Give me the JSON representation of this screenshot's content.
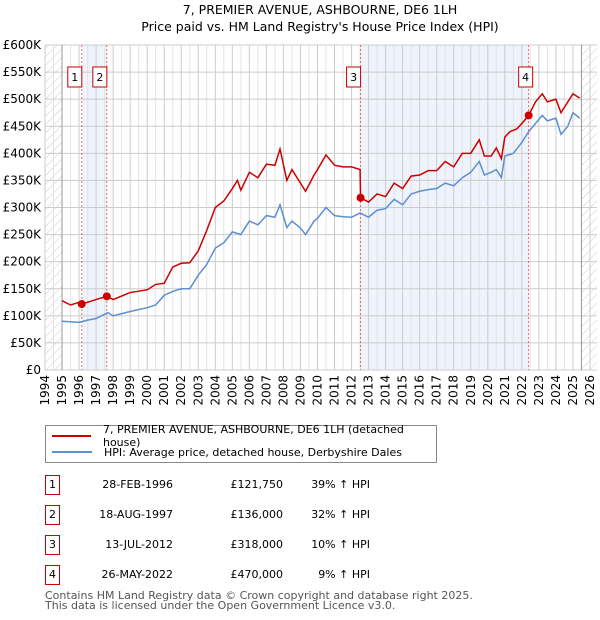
{
  "chart_data": {
    "type": "line",
    "title": "7, PREMIER AVENUE, ASHBOURNE, DE6 1LH",
    "subtitle": "Price paid vs. HM Land Registry's House Price Index (HPI)",
    "xlim": [
      1994,
      2026
    ],
    "ylim": [
      0,
      600000
    ],
    "x_ticks": [
      "1994",
      "1995",
      "1996",
      "1997",
      "1998",
      "1999",
      "2000",
      "2001",
      "2002",
      "2003",
      "2004",
      "2005",
      "2006",
      "2007",
      "2008",
      "2009",
      "2010",
      "2011",
      "2012",
      "2013",
      "2014",
      "2015",
      "2016",
      "2017",
      "2018",
      "2019",
      "2020",
      "2021",
      "2022",
      "2023",
      "2024",
      "2025",
      "2026"
    ],
    "y_ticks": [
      {
        "v": 0,
        "label": "£0"
      },
      {
        "v": 50000,
        "label": "£50K"
      },
      {
        "v": 100000,
        "label": "£100K"
      },
      {
        "v": 150000,
        "label": "£150K"
      },
      {
        "v": 200000,
        "label": "£200K"
      },
      {
        "v": 250000,
        "label": "£250K"
      },
      {
        "v": 300000,
        "label": "£300K"
      },
      {
        "v": 350000,
        "label": "£350K"
      },
      {
        "v": 400000,
        "label": "£400K"
      },
      {
        "v": 450000,
        "label": "£450K"
      },
      {
        "v": 500000,
        "label": "£500K"
      },
      {
        "v": 550000,
        "label": "£550K"
      },
      {
        "v": 600000,
        "label": "£600K"
      }
    ],
    "grid": true,
    "series": [
      {
        "name": "7, PREMIER AVENUE, ASHBOURNE, DE6 1LH (detached house)",
        "color": "#cc0000",
        "points": [
          [
            1995,
            128
          ],
          [
            1995.5,
            120
          ],
          [
            1996,
            125
          ],
          [
            1996.16,
            121.75
          ],
          [
            1997,
            130
          ],
          [
            1997.63,
            136
          ],
          [
            1998,
            130
          ],
          [
            1999,
            143
          ],
          [
            2000,
            148
          ],
          [
            2000.5,
            158
          ],
          [
            2001,
            160
          ],
          [
            2001.5,
            190
          ],
          [
            2002,
            197
          ],
          [
            2002.5,
            198
          ],
          [
            2003,
            220
          ],
          [
            2003.5,
            258
          ],
          [
            2004,
            300
          ],
          [
            2004.5,
            312
          ],
          [
            2005,
            335
          ],
          [
            2005.3,
            350
          ],
          [
            2005.5,
            332
          ],
          [
            2006,
            365
          ],
          [
            2006.5,
            355
          ],
          [
            2007,
            380
          ],
          [
            2007.5,
            378
          ],
          [
            2007.8,
            408
          ],
          [
            2008.2,
            350
          ],
          [
            2008.5,
            370
          ],
          [
            2009,
            345
          ],
          [
            2009.3,
            330
          ],
          [
            2009.8,
            360
          ],
          [
            2010,
            370
          ],
          [
            2010.5,
            397
          ],
          [
            2011,
            378
          ],
          [
            2011.5,
            375
          ],
          [
            2012,
            375
          ],
          [
            2012.5,
            370
          ],
          [
            2012.53,
            318
          ],
          [
            2013,
            310
          ],
          [
            2013.5,
            325
          ],
          [
            2014,
            320
          ],
          [
            2014.5,
            345
          ],
          [
            2015,
            335
          ],
          [
            2015.5,
            358
          ],
          [
            2016,
            360
          ],
          [
            2016.5,
            368
          ],
          [
            2017,
            368
          ],
          [
            2017.5,
            385
          ],
          [
            2018,
            375
          ],
          [
            2018.5,
            400
          ],
          [
            2019,
            400
          ],
          [
            2019.5,
            425
          ],
          [
            2019.8,
            395
          ],
          [
            2020.2,
            395
          ],
          [
            2020.5,
            410
          ],
          [
            2020.8,
            390
          ],
          [
            2021,
            430
          ],
          [
            2021.3,
            440
          ],
          [
            2021.7,
            445
          ],
          [
            2022,
            455
          ],
          [
            2022.4,
            470
          ],
          [
            2022.8,
            495
          ],
          [
            2023.2,
            510
          ],
          [
            2023.5,
            495
          ],
          [
            2024,
            500
          ],
          [
            2024.3,
            475
          ],
          [
            2024.7,
            495
          ],
          [
            2025,
            510
          ],
          [
            2025.4,
            502
          ]
        ]
      },
      {
        "name": "HPI: Average price, detached house, Derbyshire Dales",
        "color": "#5b8fd0",
        "points": [
          [
            1995,
            90
          ],
          [
            1996,
            88
          ],
          [
            1996.5,
            92
          ],
          [
            1997,
            95
          ],
          [
            1997.7,
            106
          ],
          [
            1998,
            100
          ],
          [
            1999,
            108
          ],
          [
            2000,
            115
          ],
          [
            2000.5,
            120
          ],
          [
            2001,
            138
          ],
          [
            2001.5,
            145
          ],
          [
            2002,
            150
          ],
          [
            2002.5,
            150
          ],
          [
            2003,
            175
          ],
          [
            2003.5,
            195
          ],
          [
            2004,
            225
          ],
          [
            2004.5,
            235
          ],
          [
            2005,
            255
          ],
          [
            2005.5,
            250
          ],
          [
            2006,
            275
          ],
          [
            2006.5,
            268
          ],
          [
            2007,
            285
          ],
          [
            2007.5,
            282
          ],
          [
            2007.8,
            305
          ],
          [
            2008.2,
            263
          ],
          [
            2008.5,
            275
          ],
          [
            2009,
            262
          ],
          [
            2009.3,
            250
          ],
          [
            2009.8,
            275
          ],
          [
            2010,
            280
          ],
          [
            2010.5,
            300
          ],
          [
            2011,
            285
          ],
          [
            2011.5,
            283
          ],
          [
            2012,
            282
          ],
          [
            2012.5,
            290
          ],
          [
            2013,
            282
          ],
          [
            2013.5,
            295
          ],
          [
            2014,
            298
          ],
          [
            2014.5,
            315
          ],
          [
            2015,
            305
          ],
          [
            2015.5,
            325
          ],
          [
            2016,
            330
          ],
          [
            2016.5,
            333
          ],
          [
            2017,
            335
          ],
          [
            2017.5,
            345
          ],
          [
            2018,
            340
          ],
          [
            2018.5,
            355
          ],
          [
            2019,
            365
          ],
          [
            2019.5,
            385
          ],
          [
            2019.8,
            360
          ],
          [
            2020.2,
            365
          ],
          [
            2020.5,
            370
          ],
          [
            2020.8,
            355
          ],
          [
            2021,
            395
          ],
          [
            2021.5,
            400
          ],
          [
            2022,
            420
          ],
          [
            2022.4,
            440
          ],
          [
            2022.8,
            455
          ],
          [
            2023.2,
            470
          ],
          [
            2023.5,
            460
          ],
          [
            2024,
            465
          ],
          [
            2024.3,
            435
          ],
          [
            2024.7,
            450
          ],
          [
            2025,
            475
          ],
          [
            2025.4,
            465
          ]
        ]
      }
    ],
    "value_unit": "thousands GBP",
    "sales": [
      {
        "num": "1",
        "x": 1996.16,
        "value": 121750,
        "date": "28-FEB-1996",
        "price": "£121,750",
        "hpi": "39% ↑ HPI"
      },
      {
        "num": "2",
        "x": 1997.63,
        "value": 136000,
        "date": "18-AUG-1997",
        "price": "£136,000",
        "hpi": "32% ↑ HPI"
      },
      {
        "num": "3",
        "x": 2012.53,
        "value": 318000,
        "date": "13-JUL-2012",
        "price": "£318,000",
        "hpi": "10% ↑ HPI"
      },
      {
        "num": "4",
        "x": 2022.4,
        "value": 470000,
        "date": "26-MAY-2022",
        "price": "£470,000",
        "hpi": "9% ↑ HPI"
      }
    ],
    "legend_position": "below"
  },
  "footer": [
    "Contains HM Land Registry data © Crown copyright and database right 2025.",
    "This data is licensed under the Open Government Licence v3.0."
  ]
}
